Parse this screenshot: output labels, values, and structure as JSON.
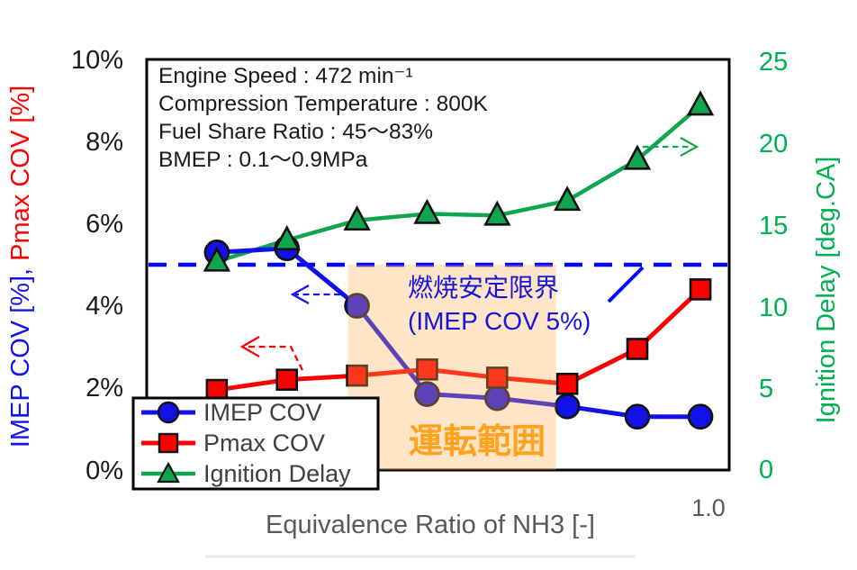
{
  "info_box": {
    "lines": [
      "Engine Speed : 472 min⁻¹",
      "Compression Temperature : 800K",
      "Fuel Share Ratio : 45～83%",
      "BMEP : 0.1～0.9MPa"
    ]
  },
  "annotations": {
    "stability_limit_line1": "燃焼安定限界",
    "stability_limit_line2": "(IMEP COV 5%)"
  },
  "colors": {
    "imep_blue": "#1212E8",
    "pmax_red": "#FF0000",
    "ignition_green": "#0FA64F",
    "green_axis_text": "#00B050",
    "limit_blue": "#0000FF",
    "region_fill": "rgba(255,170,85,0.32)",
    "region_label_orange": "#FFA21E",
    "gray_text": "#595959",
    "legend_text": "#3F3F3F",
    "black_text": "#1A1A1A"
  },
  "chart_data": {
    "type": "line",
    "title": "",
    "xlabel": "Equivalence Ratio of NH3 [-]",
    "x_tick_labels": [
      "1.0"
    ],
    "x_tick_values": [
      1.0
    ],
    "xlim": [
      0.2,
      1.031
    ],
    "y_left": {
      "label_blue": "IMEP COV [%], ",
      "label_red": "Pmax COV [%]",
      "ticks": [
        "10%",
        "8%",
        "6%",
        "4%",
        "2%",
        "0%"
      ],
      "lim": [
        0,
        10
      ]
    },
    "y_right": {
      "label": "Ignition Delay [deg.CA]",
      "ticks": [
        "25",
        "20",
        "15",
        "10",
        "5",
        "0"
      ],
      "lim": [
        0,
        25
      ]
    },
    "x": [
      0.3,
      0.4,
      0.5,
      0.6,
      0.7,
      0.8,
      0.9,
      0.99
    ],
    "series": [
      {
        "name": "IMEP COV",
        "axis": "left",
        "marker": "circle",
        "color": "#1212E8",
        "values": [
          5.3,
          5.4,
          4.0,
          1.85,
          1.75,
          1.55,
          1.3,
          1.3
        ]
      },
      {
        "name": "Pmax COV",
        "axis": "left",
        "marker": "square",
        "color": "#FF0000",
        "values": [
          1.95,
          2.2,
          2.3,
          2.45,
          2.25,
          2.1,
          2.95,
          4.4
        ]
      },
      {
        "name": "Ignition Delay",
        "axis": "right",
        "marker": "triangle",
        "color": "#0FA64F",
        "values": [
          12.7,
          14.0,
          15.2,
          15.6,
          15.5,
          16.4,
          18.9,
          22.2
        ]
      }
    ],
    "limit_line": {
      "axis": "left",
      "value": 5.0,
      "style": "dashed",
      "color": "#0000FF"
    },
    "operating_region": {
      "x_from": 0.487,
      "x_to": 0.784,
      "y_from": 0,
      "y_to": 5.0,
      "label": "運転範囲"
    },
    "grid": false,
    "legend_position": "bottom-left"
  },
  "legend": {
    "items": [
      "IMEP COV",
      "Pmax COV",
      "Ignition Delay"
    ]
  }
}
